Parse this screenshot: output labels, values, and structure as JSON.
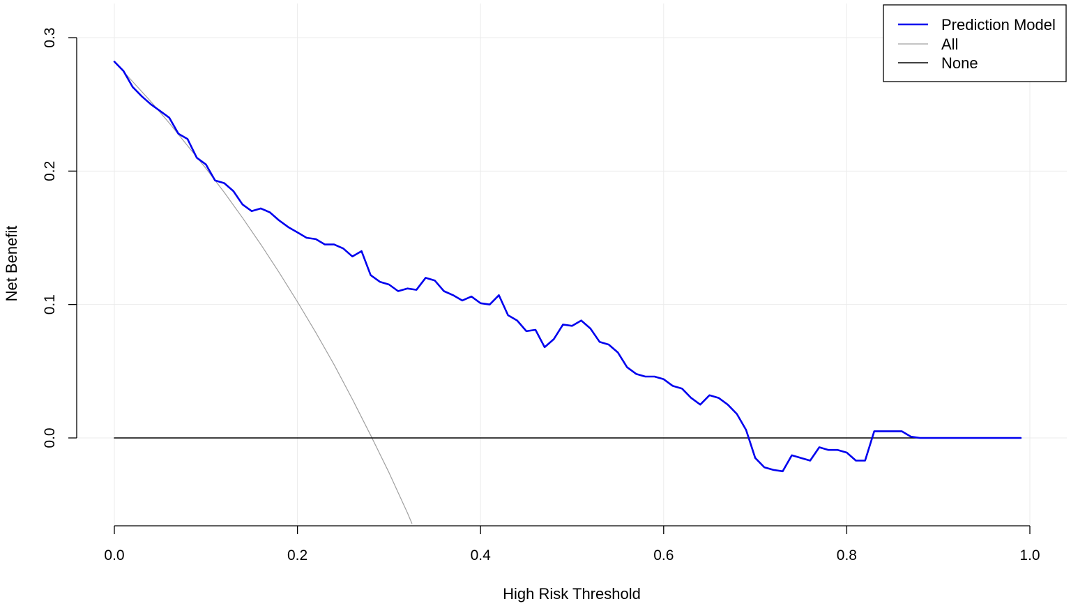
{
  "chart_data": {
    "type": "line",
    "xlabel": "High Risk Threshold",
    "ylabel": "Net Benefit",
    "xlim": [
      0.0,
      1.0
    ],
    "ylim": [
      -0.065,
      0.3
    ],
    "grid": true,
    "legend_position": "top-right",
    "x_ticks": [
      0.0,
      0.2,
      0.4,
      0.6,
      0.8,
      1.0
    ],
    "x_tick_labels": [
      "0.0",
      "0.2",
      "0.4",
      "0.6",
      "0.8",
      "1.0"
    ],
    "y_ticks": [
      0.0,
      0.1,
      0.2,
      0.3
    ],
    "y_tick_labels": [
      "0.0",
      "0.1",
      "0.2",
      "0.3"
    ],
    "series": [
      {
        "name": "Prediction Model",
        "color": "#0000ee",
        "x": [
          0.0,
          0.01,
          0.02,
          0.03,
          0.04,
          0.05,
          0.06,
          0.07,
          0.08,
          0.09,
          0.1,
          0.11,
          0.12,
          0.13,
          0.14,
          0.15,
          0.16,
          0.17,
          0.18,
          0.19,
          0.2,
          0.21,
          0.22,
          0.23,
          0.24,
          0.25,
          0.26,
          0.27,
          0.28,
          0.29,
          0.3,
          0.31,
          0.32,
          0.33,
          0.34,
          0.35,
          0.36,
          0.37,
          0.38,
          0.39,
          0.4,
          0.41,
          0.42,
          0.43,
          0.44,
          0.45,
          0.46,
          0.47,
          0.48,
          0.49,
          0.5,
          0.51,
          0.52,
          0.53,
          0.54,
          0.55,
          0.56,
          0.57,
          0.58,
          0.59,
          0.6,
          0.61,
          0.62,
          0.63,
          0.64,
          0.65,
          0.66,
          0.67,
          0.68,
          0.69,
          0.7,
          0.71,
          0.72,
          0.73,
          0.74,
          0.75,
          0.76,
          0.77,
          0.78,
          0.79,
          0.8,
          0.81,
          0.82,
          0.83,
          0.84,
          0.85,
          0.86,
          0.87,
          0.88,
          0.89,
          0.9,
          0.91,
          0.92,
          0.93,
          0.94,
          0.95,
          0.96,
          0.97,
          0.98,
          0.99
        ],
        "y": [
          0.282,
          0.275,
          0.263,
          0.256,
          0.25,
          0.245,
          0.24,
          0.228,
          0.224,
          0.21,
          0.205,
          0.193,
          0.191,
          0.185,
          0.175,
          0.17,
          0.172,
          0.169,
          0.163,
          0.158,
          0.154,
          0.15,
          0.149,
          0.145,
          0.145,
          0.142,
          0.136,
          0.14,
          0.122,
          0.117,
          0.115,
          0.11,
          0.112,
          0.111,
          0.12,
          0.118,
          0.11,
          0.107,
          0.103,
          0.106,
          0.101,
          0.1,
          0.107,
          0.092,
          0.088,
          0.08,
          0.081,
          0.068,
          0.074,
          0.085,
          0.084,
          0.088,
          0.082,
          0.072,
          0.07,
          0.064,
          0.053,
          0.048,
          0.046,
          0.046,
          0.044,
          0.039,
          0.037,
          0.03,
          0.025,
          0.032,
          0.03,
          0.025,
          0.018,
          0.006,
          -0.015,
          -0.022,
          -0.024,
          -0.025,
          -0.013,
          -0.015,
          -0.017,
          -0.007,
          -0.009,
          -0.009,
          -0.011,
          -0.017,
          -0.017,
          0.005,
          0.005,
          0.005,
          0.005,
          0.001,
          0.0,
          0.0,
          0.0,
          0.0,
          0.0,
          0.0,
          0.0,
          0.0,
          0.0,
          0.0,
          0.0,
          0.0
        ]
      },
      {
        "name": "All",
        "color": "#a0a0a0",
        "x": [
          0.0,
          0.02,
          0.04,
          0.06,
          0.08,
          0.1,
          0.12,
          0.14,
          0.16,
          0.18,
          0.2,
          0.22,
          0.24,
          0.26,
          0.28,
          0.3,
          0.31,
          0.32,
          0.325
        ],
        "y": [
          0.282,
          0.267,
          0.252,
          0.236,
          0.219,
          0.202,
          0.184,
          0.165,
          0.145,
          0.124,
          0.102,
          0.079,
          0.055,
          0.029,
          0.002,
          -0.026,
          -0.041,
          -0.056,
          -0.064
        ]
      },
      {
        "name": "None",
        "color": "#000000",
        "x": [
          0.0,
          0.99
        ],
        "y": [
          0.0,
          0.0
        ]
      }
    ]
  }
}
